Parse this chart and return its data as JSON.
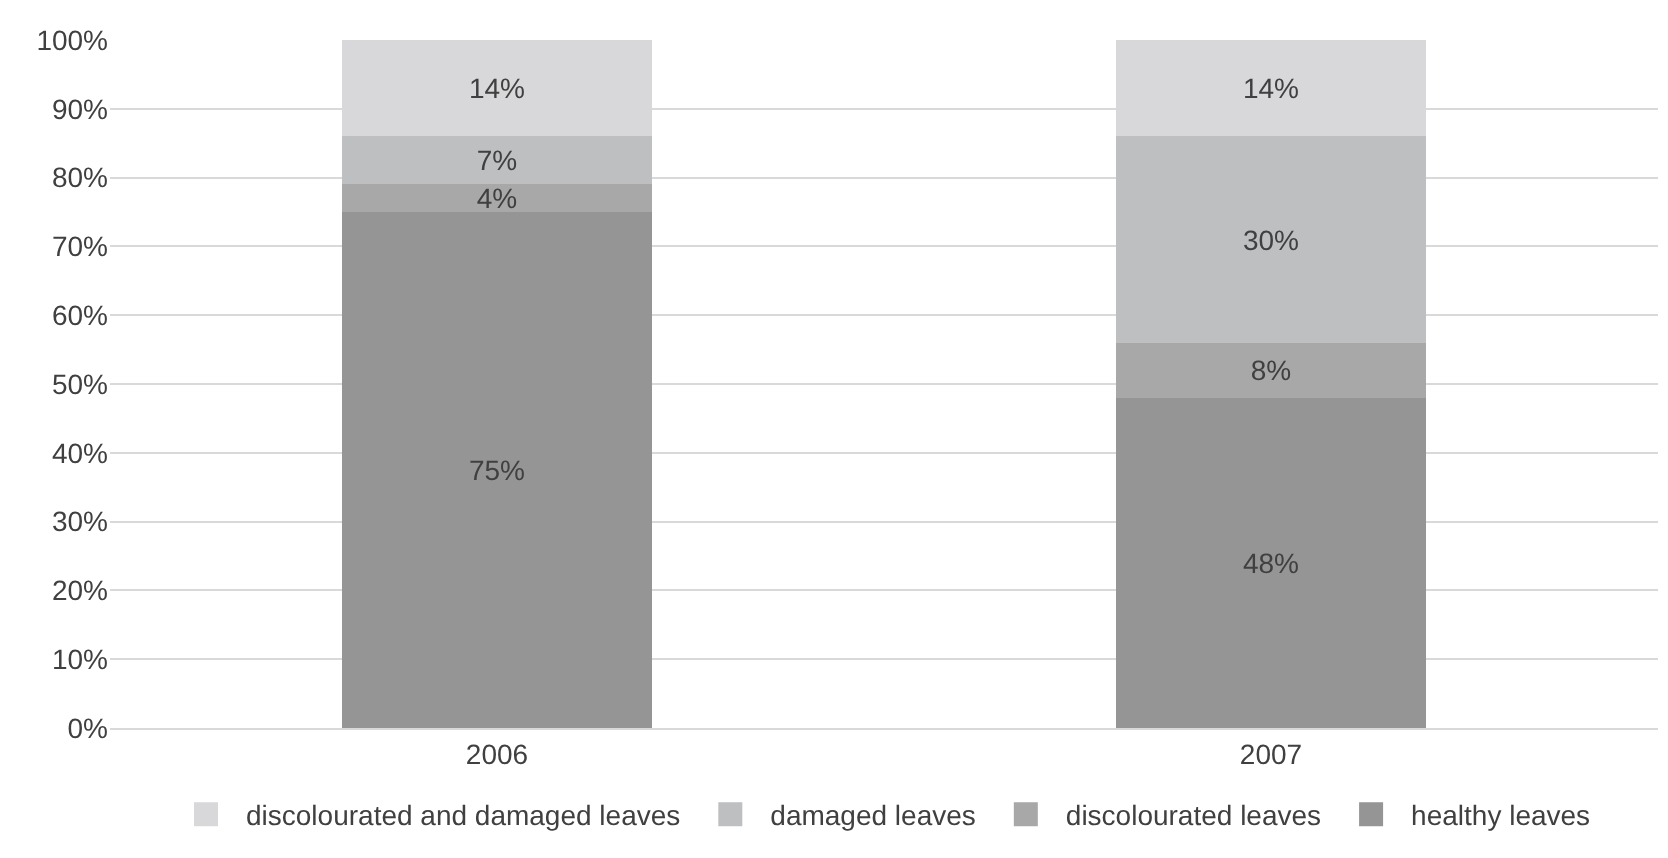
{
  "chart_data": {
    "type": "bar",
    "stacked": true,
    "categories": [
      "2006",
      "2007"
    ],
    "series": [
      {
        "name": "healthy leaves",
        "color": "#959595",
        "values": [
          75,
          48
        ],
        "value_labels": [
          "75%",
          "48%"
        ]
      },
      {
        "name": "discolourated leaves",
        "color": "#a8a8a8",
        "values": [
          4,
          8
        ],
        "value_labels": [
          "4%",
          "8%"
        ]
      },
      {
        "name": "damaged leaves",
        "color": "#bebfc1",
        "values": [
          7,
          30
        ],
        "value_labels": [
          "7%",
          "30%"
        ]
      },
      {
        "name": "discolourated and damaged leaves",
        "color": "#d8d8da",
        "values": [
          14,
          14
        ],
        "value_labels": [
          "14%",
          "14%"
        ]
      }
    ],
    "ylim": [
      0,
      100
    ],
    "yticks": [
      {
        "value": 0,
        "label": "0%"
      },
      {
        "value": 10,
        "label": "10%"
      },
      {
        "value": 20,
        "label": "20%"
      },
      {
        "value": 30,
        "label": "30%"
      },
      {
        "value": 40,
        "label": "40%"
      },
      {
        "value": 50,
        "label": "50%"
      },
      {
        "value": 60,
        "label": "60%"
      },
      {
        "value": 70,
        "label": "70%"
      },
      {
        "value": 80,
        "label": "80%"
      },
      {
        "value": 90,
        "label": "90%"
      },
      {
        "value": 100,
        "label": "100%"
      }
    ],
    "grid": "y",
    "legend": "bottom"
  }
}
